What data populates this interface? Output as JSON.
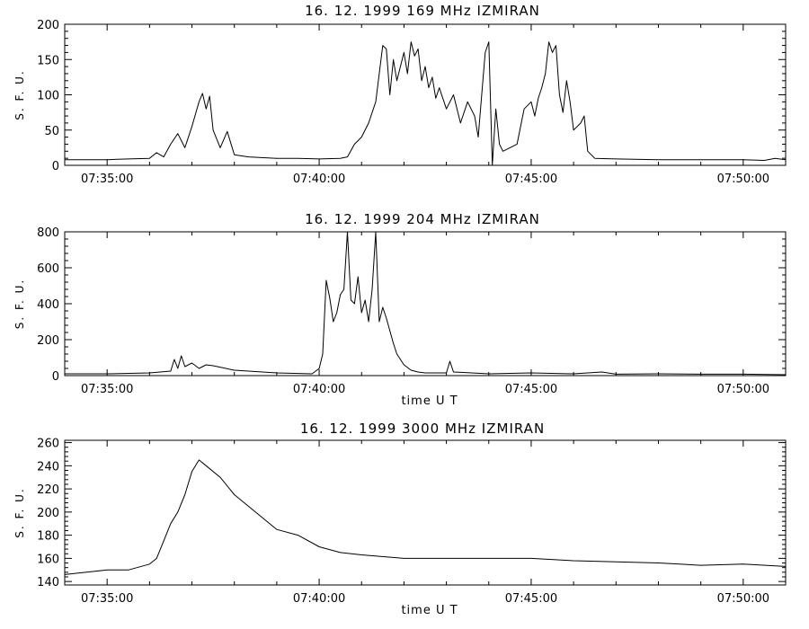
{
  "chart_data": [
    {
      "type": "line",
      "title": "16.  12.  1999    169  MHz    IZMIRAN",
      "ylabel": "S. F. U.",
      "xlabel": "",
      "ylim": [
        0,
        200
      ],
      "yticks": [
        0,
        50,
        100,
        150,
        200
      ],
      "xlim": [
        "07:34:00",
        "07:51:00"
      ],
      "xticks": [
        "07:35:00",
        "07:40:00",
        "07:45:00",
        "07:50:00"
      ],
      "series": [
        {
          "color": "#000000",
          "x": [
            "07:34:00",
            "07:35:00",
            "07:35:30",
            "07:36:00",
            "07:36:10",
            "07:36:20",
            "07:36:30",
            "07:36:40",
            "07:36:50",
            "07:37:00",
            "07:37:10",
            "07:37:15",
            "07:37:20",
            "07:37:25",
            "07:37:30",
            "07:37:40",
            "07:37:50",
            "07:38:00",
            "07:38:20",
            "07:39:00",
            "07:39:30",
            "07:40:00",
            "07:40:30",
            "07:40:40",
            "07:40:50",
            "07:41:00",
            "07:41:10",
            "07:41:20",
            "07:41:30",
            "07:41:35",
            "07:41:40",
            "07:41:45",
            "07:41:50",
            "07:42:00",
            "07:42:05",
            "07:42:10",
            "07:42:15",
            "07:42:20",
            "07:42:25",
            "07:42:30",
            "07:42:35",
            "07:42:40",
            "07:42:45",
            "07:42:50",
            "07:43:00",
            "07:43:10",
            "07:43:20",
            "07:43:30",
            "07:43:40",
            "07:43:45",
            "07:43:50",
            "07:43:55",
            "07:44:00",
            "07:44:05",
            "07:44:10",
            "07:44:15",
            "07:44:20",
            "07:44:30",
            "07:44:40",
            "07:44:50",
            "07:45:00",
            "07:45:05",
            "07:45:10",
            "07:45:15",
            "07:45:20",
            "07:45:25",
            "07:45:30",
            "07:45:35",
            "07:45:40",
            "07:45:45",
            "07:45:50",
            "07:45:55",
            "07:46:00",
            "07:46:10",
            "07:46:15",
            "07:46:20",
            "07:46:30",
            "07:47:00",
            "07:48:00",
            "07:49:00",
            "07:50:00",
            "07:50:30",
            "07:50:45",
            "07:51:00"
          ],
          "y": [
            8,
            8,
            9,
            10,
            18,
            12,
            30,
            45,
            25,
            55,
            90,
            102,
            80,
            98,
            50,
            25,
            48,
            15,
            12,
            10,
            10,
            9,
            10,
            12,
            30,
            40,
            60,
            90,
            170,
            165,
            100,
            150,
            120,
            160,
            130,
            175,
            155,
            165,
            120,
            140,
            110,
            125,
            95,
            110,
            80,
            100,
            60,
            90,
            70,
            40,
            100,
            160,
            175,
            0,
            80,
            30,
            20,
            25,
            30,
            80,
            90,
            70,
            95,
            110,
            130,
            175,
            160,
            170,
            100,
            75,
            120,
            90,
            50,
            60,
            70,
            20,
            10,
            9,
            8,
            8,
            8,
            7,
            10,
            8
          ]
        }
      ]
    },
    {
      "type": "line",
      "title": "16.  12.  1999    204  MHz    IZMIRAN",
      "ylabel": "S. F. U.",
      "xlabel": "time   U T",
      "ylim": [
        0,
        800
      ],
      "yticks": [
        0,
        200,
        400,
        600,
        800
      ],
      "xlim": [
        "07:34:00",
        "07:51:00"
      ],
      "xticks": [
        "07:35:00",
        "07:40:00",
        "07:45:00",
        "07:50:00"
      ],
      "series": [
        {
          "color": "#000000",
          "x": [
            "07:34:00",
            "07:35:00",
            "07:36:00",
            "07:36:30",
            "07:36:35",
            "07:36:40",
            "07:36:45",
            "07:36:50",
            "07:37:00",
            "07:37:10",
            "07:37:20",
            "07:37:30",
            "07:38:00",
            "07:39:00",
            "07:39:50",
            "07:40:00",
            "07:40:05",
            "07:40:10",
            "07:40:15",
            "07:40:20",
            "07:40:25",
            "07:40:30",
            "07:40:35",
            "07:40:40",
            "07:40:45",
            "07:40:50",
            "07:40:55",
            "07:41:00",
            "07:41:05",
            "07:41:10",
            "07:41:15",
            "07:41:20",
            "07:41:25",
            "07:41:30",
            "07:41:35",
            "07:41:40",
            "07:41:45",
            "07:41:50",
            "07:42:00",
            "07:42:10",
            "07:42:20",
            "07:42:30",
            "07:43:00",
            "07:43:05",
            "07:43:10",
            "07:44:00",
            "07:45:00",
            "07:46:00",
            "07:46:40",
            "07:47:00",
            "07:48:00",
            "07:49:00",
            "07:50:00",
            "07:51:00"
          ],
          "y": [
            10,
            10,
            15,
            25,
            90,
            40,
            110,
            50,
            70,
            40,
            60,
            55,
            30,
            15,
            10,
            40,
            120,
            530,
            430,
            300,
            350,
            450,
            480,
            800,
            420,
            400,
            550,
            350,
            420,
            300,
            480,
            800,
            300,
            380,
            320,
            250,
            180,
            120,
            60,
            30,
            20,
            15,
            15,
            80,
            20,
            10,
            15,
            10,
            20,
            8,
            10,
            8,
            8,
            5
          ]
        }
      ]
    },
    {
      "type": "line",
      "title": "16.  12.  1999    3000  MHz    IZMIRAN",
      "ylabel": "S. F. U.",
      "xlabel": "time   U T",
      "ylim": [
        137,
        262
      ],
      "yticks": [
        140,
        160,
        180,
        200,
        220,
        240,
        260
      ],
      "xlim": [
        "07:34:00",
        "07:51:00"
      ],
      "xticks": [
        "07:35:00",
        "07:40:00",
        "07:45:00",
        "07:50:00"
      ],
      "series": [
        {
          "color": "#000000",
          "x": [
            "07:34:00",
            "07:35:00",
            "07:35:30",
            "07:36:00",
            "07:36:10",
            "07:36:20",
            "07:36:30",
            "07:36:40",
            "07:36:50",
            "07:37:00",
            "07:37:10",
            "07:37:20",
            "07:37:40",
            "07:38:00",
            "07:38:30",
            "07:39:00",
            "07:39:30",
            "07:40:00",
            "07:40:30",
            "07:41:00",
            "07:42:00",
            "07:43:00",
            "07:44:00",
            "07:45:00",
            "07:46:00",
            "07:47:00",
            "07:48:00",
            "07:49:00",
            "07:50:00",
            "07:51:00"
          ],
          "y": [
            146,
            150,
            150,
            155,
            160,
            175,
            190,
            200,
            215,
            235,
            245,
            240,
            230,
            215,
            200,
            185,
            180,
            170,
            165,
            163,
            160,
            160,
            160,
            160,
            158,
            157,
            156,
            154,
            155,
            153
          ]
        }
      ]
    }
  ]
}
